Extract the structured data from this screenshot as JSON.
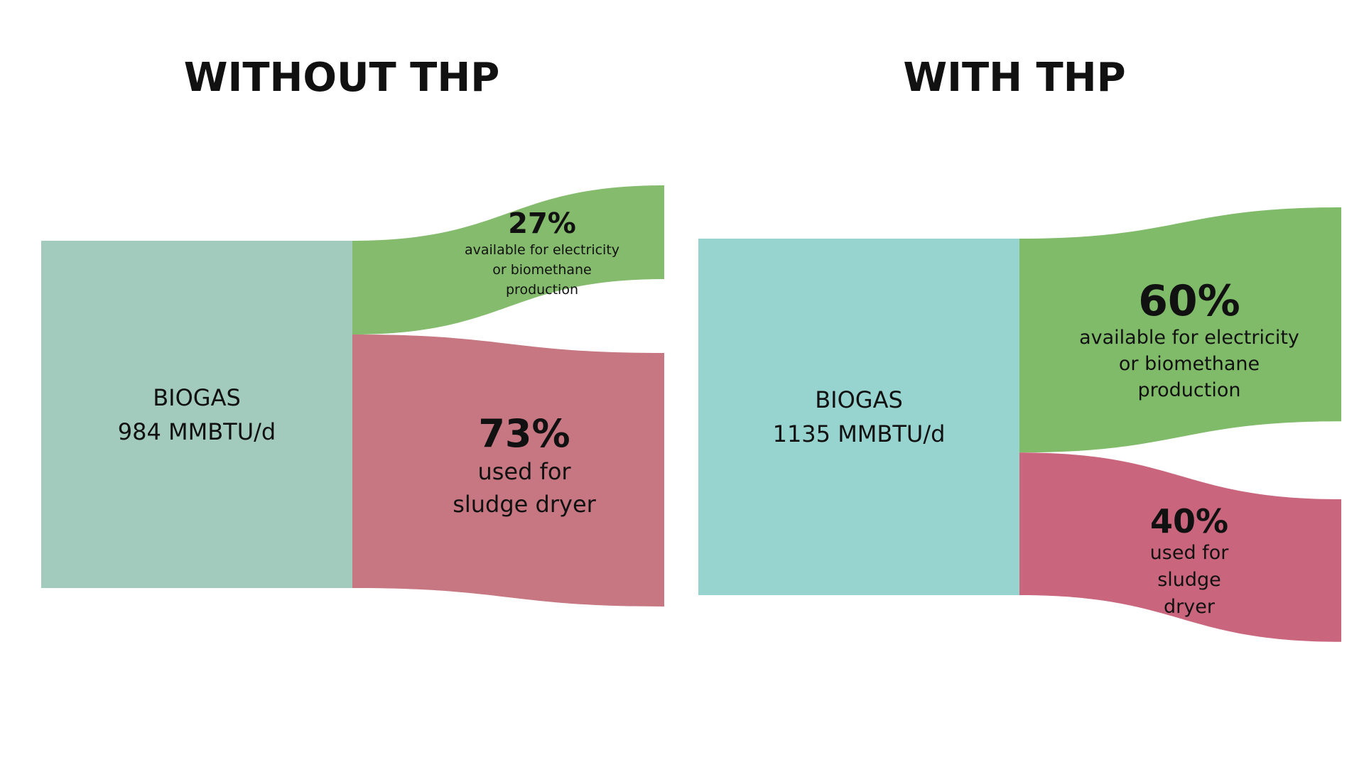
{
  "chart_data": [
    {
      "type": "sankey",
      "title": "WITHOUT THP",
      "source": {
        "name": "BIOGAS",
        "value": 984,
        "value_label": "984 MMBTU/d",
        "color": "#a3cbbd"
      },
      "categories": [
        "available for electricity or biomethane production",
        "used for sludge dryer"
      ],
      "values": [
        27,
        73
      ],
      "value_labels": [
        "27%",
        "73%"
      ],
      "colors": [
        "#84bb6c",
        "#c67781"
      ]
    },
    {
      "type": "sankey",
      "title": "WITH THP",
      "source": {
        "name": "BIOGAS",
        "value": 1135,
        "value_label": "1135 MMBTU/d",
        "color": "#98d4cf"
      },
      "categories": [
        "available for electricity or biomethane production",
        "used for sludge dryer"
      ],
      "values": [
        60,
        40
      ],
      "value_labels": [
        "60%",
        "40%"
      ],
      "colors": [
        "#80bb6a",
        "#c9667d"
      ]
    }
  ]
}
